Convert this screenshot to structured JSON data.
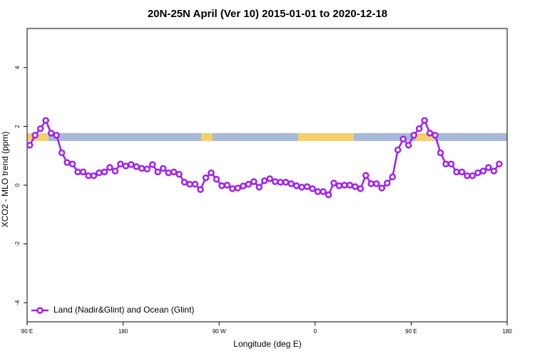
{
  "chart_data": {
    "type": "line",
    "title": "20N-25N April (Ver 10)   2015-01-01 to 2020-12-18",
    "x_label": "Longitude (deg E)",
    "y_label": "XCO2 - MLO trend (ppm)",
    "xlim": [
      90,
      540
    ],
    "xticks": [
      {
        "value": 90,
        "label": "90 E"
      },
      {
        "value": 180,
        "label": "180"
      },
      {
        "value": 270,
        "label": "90 W"
      },
      {
        "value": 360,
        "label": "0"
      },
      {
        "value": 450,
        "label": "90 E"
      },
      {
        "value": 540,
        "label": "180"
      }
    ],
    "ylim": [
      -4.65,
      5.33
    ],
    "yticks": [
      -4,
      -2,
      0,
      2,
      4
    ],
    "legend": "bottom-left",
    "x": [
      92.5,
      97.5,
      102.5,
      107.5,
      112.5,
      117.5,
      122.5,
      127.5,
      132.5,
      137.5,
      142.5,
      147.5,
      152.5,
      157.5,
      162.5,
      167.5,
      172.5,
      177.5,
      182.5,
      187.5,
      192.5,
      197.5,
      202.5,
      207.5,
      212.5,
      217.5,
      222.5,
      227.5,
      232.5,
      237.5,
      242.5,
      247.5,
      252.5,
      257.5,
      262.5,
      267.5,
      272.5,
      277.5,
      282.5,
      287.5,
      292.5,
      297.5,
      302.5,
      307.5,
      312.5,
      317.5,
      322.5,
      327.5,
      332.5,
      337.5,
      342.5,
      347.5,
      352.5,
      357.5,
      362.5,
      367.5,
      372.5,
      377.5,
      382.5,
      387.5,
      392.5,
      397.5,
      402.5,
      407.5,
      412.5,
      417.5,
      422.5,
      427.5,
      432.5,
      437.5,
      442.5,
      447.5,
      452.5,
      457.5,
      462.5,
      467.5,
      472.5,
      477.5,
      482.5,
      487.5,
      492.5,
      497.5,
      502.5,
      507.5,
      512.5,
      517.5,
      522.5,
      527.5,
      532.5
    ],
    "series": [
      {
        "name": "Land (Nadir&Glint) and Ocean (Glint)",
        "color": "#a020f0",
        "values": [
          1.36,
          1.7,
          1.92,
          2.2,
          1.77,
          1.7,
          1.1,
          0.77,
          0.72,
          0.45,
          0.45,
          0.32,
          0.32,
          0.42,
          0.45,
          0.6,
          0.48,
          0.72,
          0.65,
          0.7,
          0.63,
          0.57,
          0.55,
          0.7,
          0.45,
          0.57,
          0.42,
          0.45,
          0.37,
          0.1,
          0.03,
          0.03,
          -0.15,
          0.25,
          0.42,
          0.2,
          -0.02,
          0,
          -0.12,
          -0.1,
          -0.03,
          0.03,
          0.12,
          -0.07,
          0.15,
          0.22,
          0.12,
          0.1,
          0.1,
          0.05,
          -0.02,
          -0.07,
          -0.05,
          -0.12,
          -0.22,
          -0.22,
          -0.33,
          0.07,
          -0.02,
          0,
          0,
          -0.05,
          -0.12,
          0.33,
          0.05,
          0.05,
          -0.1,
          0.07,
          0.28,
          1.2,
          1.57,
          1.36,
          1.7,
          1.92,
          2.2,
          1.77,
          1.7,
          1.1,
          0.72,
          0.72,
          0.45,
          0.45,
          0.32,
          0.32,
          0.42,
          0.48,
          0.6,
          0.48,
          0.72
        ]
      }
    ]
  }
}
